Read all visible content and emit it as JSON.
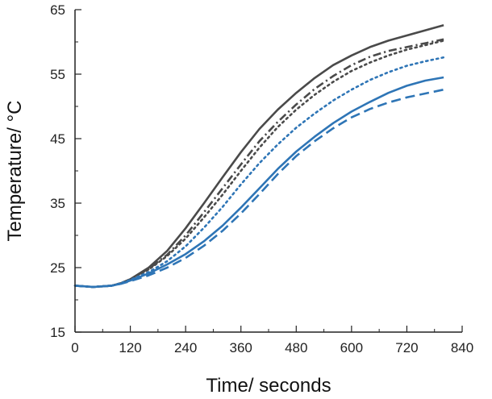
{
  "chart_data": {
    "type": "line",
    "xlabel": "Time/ seconds",
    "ylabel": "Temperature/ °C",
    "xlim": [
      0,
      840
    ],
    "ylim": [
      15,
      65
    ],
    "xticks": [
      0,
      120,
      240,
      360,
      480,
      600,
      720,
      840
    ],
    "yticks": [
      15,
      25,
      35,
      45,
      55,
      65
    ],
    "x": [
      0,
      40,
      80,
      100,
      120,
      160,
      200,
      240,
      280,
      320,
      360,
      400,
      440,
      480,
      520,
      560,
      600,
      640,
      680,
      720,
      760,
      800
    ],
    "series": [
      {
        "color": "#4a4a4a",
        "style": "solid",
        "values": [
          22.2,
          22.0,
          22.2,
          22.6,
          23.2,
          25.0,
          27.6,
          31.1,
          35.0,
          39.0,
          42.9,
          46.5,
          49.5,
          52.1,
          54.4,
          56.4,
          57.9,
          59.2,
          60.2,
          61.0,
          61.8,
          62.6
        ]
      },
      {
        "color": "#4a4a4a",
        "style": "dashdot",
        "values": [
          22.2,
          22.0,
          22.2,
          22.6,
          23.2,
          24.8,
          27.0,
          30.0,
          33.6,
          37.3,
          41.0,
          44.6,
          47.6,
          50.3,
          52.7,
          54.7,
          56.4,
          57.7,
          58.6,
          59.2,
          59.8,
          60.4
        ]
      },
      {
        "color": "#4a4a4a",
        "style": "dotted",
        "values": [
          22.2,
          22.0,
          22.2,
          22.6,
          23.2,
          24.7,
          26.8,
          29.5,
          32.8,
          36.3,
          40.0,
          43.6,
          46.8,
          49.5,
          51.8,
          53.8,
          55.5,
          56.8,
          57.9,
          58.8,
          59.5,
          60.2
        ]
      },
      {
        "color": "#2e75b6",
        "style": "dotted",
        "values": [
          22.2,
          22.0,
          22.2,
          22.6,
          23.1,
          24.3,
          26.0,
          28.3,
          31.2,
          34.4,
          37.9,
          41.2,
          44.1,
          46.7,
          48.9,
          50.9,
          52.6,
          54.1,
          55.3,
          56.3,
          57.0,
          57.6
        ]
      },
      {
        "color": "#2e75b6",
        "style": "solid",
        "values": [
          22.2,
          22.0,
          22.2,
          22.5,
          23.0,
          24.1,
          25.5,
          27.1,
          29.1,
          31.5,
          34.3,
          37.3,
          40.3,
          43.0,
          45.3,
          47.4,
          49.2,
          50.7,
          52.1,
          53.2,
          54.0,
          54.5
        ]
      },
      {
        "color": "#2e75b6",
        "style": "dashed",
        "values": [
          22.2,
          22.0,
          22.2,
          22.5,
          22.9,
          23.8,
          25.0,
          26.5,
          28.4,
          30.7,
          33.4,
          36.4,
          39.5,
          42.3,
          44.6,
          46.6,
          48.3,
          49.6,
          50.6,
          51.4,
          52.0,
          52.6
        ]
      }
    ]
  }
}
